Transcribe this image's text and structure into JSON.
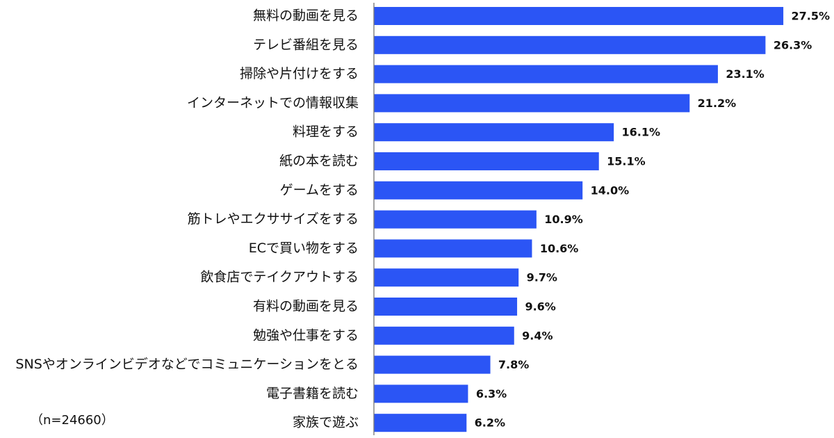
{
  "chart_data": {
    "type": "bar",
    "orientation": "horizontal",
    "categories": [
      "無料の動画を見る",
      "テレビ番組を見る",
      "掃除や片付けをする",
      "インターネットでの情報収集",
      "料理をする",
      "紙の本を読む",
      "ゲームをする",
      "筋トレやエクササイズをする",
      "ECで買い物をする",
      "飲食店でテイクアウトする",
      "有料の動画を見る",
      "勉強や仕事をする",
      "SNSやオンラインビデオなどでコミュニケーションをとる",
      "電子書籍を読む",
      "家族で遊ぶ"
    ],
    "values": [
      27.5,
      26.3,
      23.1,
      21.2,
      16.1,
      15.1,
      14.0,
      10.9,
      10.6,
      9.7,
      9.6,
      9.4,
      7.8,
      6.3,
      6.2
    ],
    "value_labels": [
      "27.5%",
      "26.3%",
      "23.1%",
      "21.2%",
      "16.1%",
      "15.1%",
      "14.0%",
      "10.9%",
      "10.6%",
      "9.7%",
      "9.6%",
      "9.4%",
      "7.8%",
      "6.3%",
      "6.2%"
    ],
    "xlim": [
      0,
      30
    ],
    "grid": false,
    "bar_color": "#2b55f5",
    "axis_color": "#666666"
  },
  "sample_note": "（n=24660）"
}
